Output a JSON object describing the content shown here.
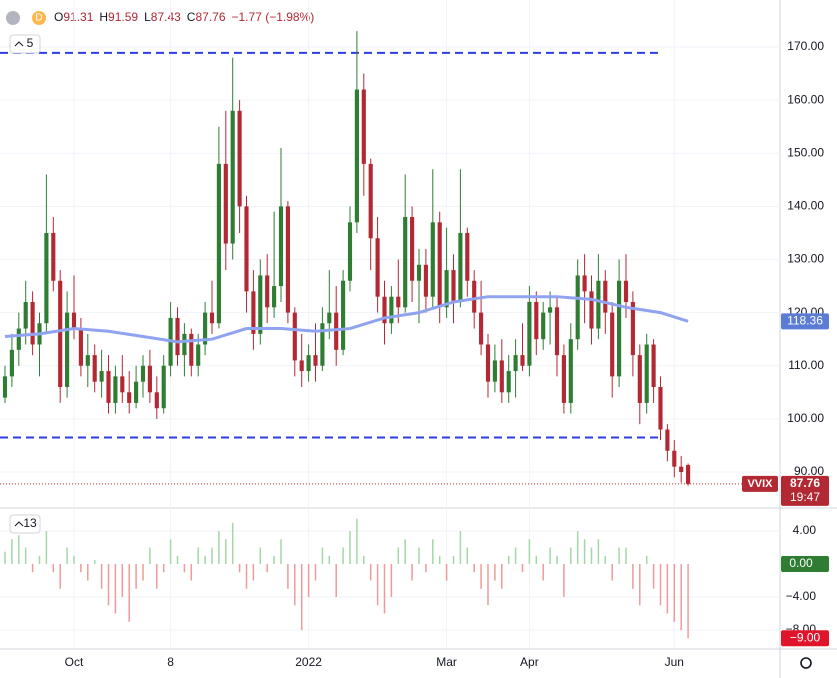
{
  "header": {
    "interval": "D",
    "ohlc": [
      {
        "key": "O",
        "value": "91.31"
      },
      {
        "key": "H",
        "value": "91.59"
      },
      {
        "key": "L",
        "value": "87.43"
      },
      {
        "key": "C",
        "value": "87.76"
      }
    ],
    "change": "−1.77 (−1.98%)"
  },
  "chart_data": [
    {
      "type": "candlestick",
      "indicator_label": "5",
      "symbol": "VVIX",
      "countdown": "19:47",
      "up_color": "#2e7d32",
      "down_color": "#b22833",
      "xlim": [
        -0.725,
        112.32
      ],
      "xticks": [
        {
          "value": 10,
          "label": "Oct"
        },
        {
          "value": 24,
          "label": "8"
        },
        {
          "value": 44,
          "label": "2022"
        },
        {
          "value": 64,
          "label": "Mar"
        },
        {
          "value": 76,
          "label": "Apr"
        },
        {
          "value": 97,
          "label": "Jun"
        }
      ],
      "ylim": [
        83.41,
        178.85
      ],
      "yticks": [
        {
          "value": 90,
          "label": "90.00"
        },
        {
          "value": 100,
          "label": "100.00"
        },
        {
          "value": 110,
          "label": "110.00"
        },
        {
          "value": 120,
          "label": "120.00"
        },
        {
          "value": 130,
          "label": "130.00"
        },
        {
          "value": 140,
          "label": "140.00"
        },
        {
          "value": 150,
          "label": "150.00"
        },
        {
          "value": 160,
          "label": "160.00"
        },
        {
          "value": 170,
          "label": "170.00"
        }
      ],
      "grid": true,
      "levels": [
        168.9,
        96.5
      ],
      "level_color": "#2d3ee0",
      "candles": [
        [
          104,
          110,
          103,
          108
        ],
        [
          108,
          116,
          106,
          113
        ],
        [
          113,
          120,
          110,
          117
        ],
        [
          117,
          126,
          114,
          122
        ],
        [
          122,
          124,
          112,
          114
        ],
        [
          114,
          120,
          108,
          118
        ],
        [
          118,
          146,
          116,
          135
        ],
        [
          135,
          138,
          124,
          126
        ],
        [
          126,
          128,
          103,
          106
        ],
        [
          106,
          124,
          104,
          120
        ],
        [
          120,
          127,
          115,
          117
        ],
        [
          117,
          119,
          108,
          110
        ],
        [
          110,
          116,
          106,
          112
        ],
        [
          112,
          114,
          105,
          107
        ],
        [
          107,
          113,
          104,
          109
        ],
        [
          109,
          112,
          101,
          103
        ],
        [
          103,
          110,
          101,
          108
        ],
        [
          108,
          112,
          103,
          105
        ],
        [
          105,
          109,
          101,
          103
        ],
        [
          103,
          110,
          102,
          107
        ],
        [
          107,
          112,
          104,
          110
        ],
        [
          110,
          113,
          103,
          105
        ],
        [
          105,
          108,
          100,
          102
        ],
        [
          102,
          112,
          101,
          110
        ],
        [
          110,
          122,
          108,
          119
        ],
        [
          119,
          121,
          110,
          112
        ],
        [
          112,
          118,
          108,
          116
        ],
        [
          116,
          117,
          108,
          110
        ],
        [
          110,
          116,
          108,
          114
        ],
        [
          114,
          122,
          112,
          120
        ],
        [
          120,
          126,
          116,
          118
        ],
        [
          118,
          155,
          117,
          148
        ],
        [
          148,
          158,
          128,
          133
        ],
        [
          133,
          168,
          130,
          158
        ],
        [
          158,
          160,
          135,
          140
        ],
        [
          140,
          142,
          120,
          124
        ],
        [
          124,
          128,
          113,
          116
        ],
        [
          116,
          130,
          114,
          127
        ],
        [
          127,
          131,
          118,
          121
        ],
        [
          121,
          139,
          119,
          125
        ],
        [
          125,
          151,
          122,
          140
        ],
        [
          140,
          141,
          118,
          120
        ],
        [
          120,
          121,
          108,
          111
        ],
        [
          111,
          116,
          106,
          109
        ],
        [
          109,
          114,
          107,
          112
        ],
        [
          112,
          118,
          107,
          110
        ],
        [
          110,
          121,
          109,
          118
        ],
        [
          118,
          128,
          115,
          120
        ],
        [
          120,
          125,
          110,
          113
        ],
        [
          113,
          128,
          112,
          126
        ],
        [
          126,
          140,
          124,
          137
        ],
        [
          137,
          173,
          135,
          162
        ],
        [
          162,
          165,
          142,
          148
        ],
        [
          148,
          149,
          128,
          134
        ],
        [
          134,
          138,
          120,
          123
        ],
        [
          123,
          126,
          114,
          118
        ],
        [
          118,
          125,
          116,
          123
        ],
        [
          123,
          130,
          118,
          121
        ],
        [
          121,
          146,
          120,
          138
        ],
        [
          138,
          140,
          122,
          126
        ],
        [
          126,
          132,
          118,
          129
        ],
        [
          129,
          132,
          120,
          123
        ],
        [
          123,
          147,
          121,
          137
        ],
        [
          137,
          139,
          118,
          121
        ],
        [
          121,
          136,
          119,
          128
        ],
        [
          128,
          131,
          118,
          122
        ],
        [
          122,
          147,
          121,
          135
        ],
        [
          135,
          136,
          123,
          126
        ],
        [
          126,
          128,
          117,
          120
        ],
        [
          120,
          126,
          112,
          114
        ],
        [
          114,
          116,
          104,
          107
        ],
        [
          107,
          114,
          105,
          111
        ],
        [
          111,
          115,
          103,
          105
        ],
        [
          105,
          112,
          103,
          109
        ],
        [
          109,
          115,
          104,
          112
        ],
        [
          112,
          118,
          109,
          110
        ],
        [
          110,
          125,
          108,
          122
        ],
        [
          122,
          124,
          112,
          115
        ],
        [
          115,
          122,
          113,
          120
        ],
        [
          120,
          124,
          114,
          121
        ],
        [
          121,
          123,
          108,
          112
        ],
        [
          112,
          114,
          101,
          103
        ],
        [
          103,
          118,
          101,
          115
        ],
        [
          115,
          130,
          113,
          127
        ],
        [
          127,
          131,
          118,
          124
        ],
        [
          124,
          127,
          114,
          117
        ],
        [
          117,
          131,
          115,
          126
        ],
        [
          126,
          128,
          116,
          120
        ],
        [
          120,
          122,
          104,
          108
        ],
        [
          108,
          130,
          106,
          126
        ],
        [
          126,
          131,
          119,
          122
        ],
        [
          122,
          124,
          108,
          112
        ],
        [
          112,
          114,
          99,
          103
        ],
        [
          103,
          116,
          101,
          114
        ],
        [
          114,
          115,
          103,
          106
        ],
        [
          106,
          108,
          96,
          98
        ],
        [
          98,
          99,
          92,
          94
        ],
        [
          94,
          96,
          89,
          91
        ],
        [
          91,
          93,
          88,
          90
        ],
        [
          91.31,
          91.59,
          87.43,
          87.76
        ]
      ],
      "moving_average": {
        "color": "#8fa3f0",
        "x": [
          0,
          5,
          10,
          15,
          20,
          25,
          30,
          35,
          40,
          45,
          50,
          55,
          60,
          65,
          70,
          75,
          80,
          85,
          90,
          95,
          99
        ],
        "values": [
          115.5,
          116,
          117,
          116.5,
          115.5,
          114.5,
          115,
          117,
          117,
          116.5,
          117,
          119,
          120,
          122,
          123,
          123,
          123,
          122.5,
          121,
          120,
          118.36
        ]
      }
    },
    {
      "type": "histogram",
      "indicator_label": "13",
      "up_color": "#a5d6a7",
      "down_color": "#ef9a9a",
      "last_up_color": "#2e7d32",
      "last_down_color": "#e0142a",
      "ylim": [
        -10.18,
        6.55
      ],
      "yticks": [
        {
          "value": 4,
          "label": "4.00"
        },
        {
          "value": 0,
          "label": "0.00"
        },
        {
          "value": -4,
          "label": "−4.00"
        },
        {
          "value": -8,
          "label": "−8.00"
        }
      ],
      "values": [
        1.5,
        3,
        3.5,
        2,
        -1,
        1,
        4,
        -1,
        -3,
        2,
        1,
        -1,
        -2,
        0.5,
        -3,
        -5,
        -6,
        -4,
        -7,
        -3,
        -2,
        2,
        -3,
        -1,
        3,
        1,
        -1,
        -2,
        2,
        1,
        2,
        4,
        3,
        5,
        -1,
        -3,
        -2,
        2,
        -1,
        1,
        3,
        -3,
        -5,
        -8,
        -4,
        -2,
        2,
        1,
        -4,
        2,
        4,
        5.5,
        1,
        -2,
        -5,
        -6,
        -4,
        2,
        3,
        -2,
        2,
        -1,
        3,
        1,
        -2,
        1,
        4,
        2,
        -1,
        -3,
        -5,
        -2,
        -3,
        1,
        2,
        -1,
        3,
        1,
        -2,
        2,
        1,
        -4,
        2,
        4,
        3,
        2,
        3,
        1,
        -2,
        2,
        2,
        -3,
        -5,
        1,
        -3,
        -5,
        -6,
        -7,
        -8,
        -9
      ],
      "value_labels": [
        null,
        null,
        null,
        null,
        null,
        null,
        null,
        null,
        null,
        null,
        null,
        null,
        null,
        null,
        null,
        null,
        null,
        null,
        null,
        null,
        null,
        null,
        null,
        null,
        null,
        null,
        null,
        null,
        null,
        null,
        null,
        null,
        null,
        null,
        null,
        null,
        null,
        null,
        null,
        null,
        null,
        null,
        null,
        null,
        null,
        null,
        null,
        null,
        null,
        null,
        null,
        null,
        null,
        null,
        null,
        null,
        null,
        null,
        null,
        null,
        null,
        null,
        null,
        null,
        null,
        null,
        null,
        null,
        null,
        null,
        null,
        null,
        null,
        null,
        null,
        null,
        null,
        null,
        null,
        null,
        null,
        null,
        null,
        null,
        null,
        null,
        null,
        null,
        null,
        null,
        null,
        null,
        null,
        null,
        null,
        null,
        null,
        null,
        null,
        "−9.00"
      ]
    }
  ]
}
